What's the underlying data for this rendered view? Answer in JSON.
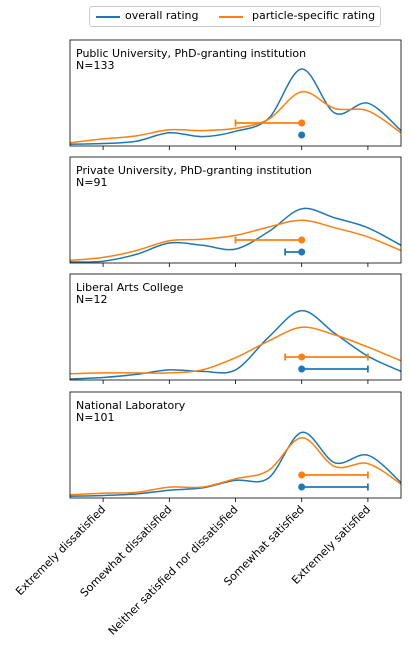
{
  "legend": {
    "placement": "top-center",
    "items": [
      {
        "label": "overall rating",
        "color": "#1f77b4"
      },
      {
        "label": "particle-specific rating",
        "color": "#ff7f0e"
      }
    ]
  },
  "x_tick_labels": [
    "Extremely dissatisfied",
    "Somewhat dissatisfied",
    "Neither satisfied nor dissatisfied",
    "Somewhat satisfied",
    "Extremely satisfied"
  ],
  "chart_data": [
    {
      "type": "line",
      "title": "Public University, PhD-granting institution",
      "n_label": "N=133",
      "x_range": [
        0.5,
        5.5
      ],
      "ylim": [
        0,
        1
      ],
      "series": [
        {
          "name": "overall rating",
          "color": "#1f77b4",
          "x": [
            0.5,
            1.0,
            1.5,
            2.0,
            2.5,
            3.0,
            3.5,
            4.0,
            4.5,
            5.0,
            5.5
          ],
          "y": [
            0.01,
            0.02,
            0.05,
            0.16,
            0.11,
            0.18,
            0.35,
            1.0,
            0.42,
            0.55,
            0.19
          ],
          "point_estimate": 4.0,
          "interval": null
        },
        {
          "name": "particle-specific rating",
          "color": "#ff7f0e",
          "x": [
            0.5,
            1.0,
            1.5,
            2.0,
            2.5,
            3.0,
            3.5,
            4.0,
            4.5,
            5.0,
            5.5
          ],
          "y": [
            0.03,
            0.08,
            0.12,
            0.2,
            0.19,
            0.22,
            0.34,
            0.7,
            0.48,
            0.45,
            0.16
          ],
          "point_estimate": 4.0,
          "interval": [
            3.0,
            4.0
          ]
        }
      ]
    },
    {
      "type": "line",
      "title": "Private University, PhD-granting institution",
      "n_label": "N=91",
      "x_range": [
        0.5,
        5.5
      ],
      "ylim": [
        0,
        1
      ],
      "series": [
        {
          "name": "overall rating",
          "color": "#1f77b4",
          "x": [
            0.5,
            1.0,
            1.5,
            2.0,
            2.5,
            3.0,
            3.5,
            4.0,
            4.5,
            5.0,
            5.5
          ],
          "y": [
            0.0,
            0.01,
            0.1,
            0.25,
            0.22,
            0.17,
            0.4,
            0.7,
            0.58,
            0.45,
            0.22
          ],
          "point_estimate": 4.0,
          "interval": [
            3.75,
            4.0
          ]
        },
        {
          "name": "particle-specific rating",
          "color": "#ff7f0e",
          "x": [
            0.5,
            1.0,
            1.5,
            2.0,
            2.5,
            3.0,
            3.5,
            4.0,
            4.5,
            5.0,
            5.5
          ],
          "y": [
            0.02,
            0.06,
            0.15,
            0.28,
            0.3,
            0.35,
            0.46,
            0.55,
            0.45,
            0.33,
            0.15
          ],
          "point_estimate": 4.0,
          "interval": [
            3.0,
            4.0
          ]
        }
      ]
    },
    {
      "type": "line",
      "title": "Liberal Arts College",
      "n_label": "N=12",
      "x_range": [
        0.5,
        5.5
      ],
      "ylim": [
        0,
        1
      ],
      "series": [
        {
          "name": "overall rating",
          "color": "#1f77b4",
          "x": [
            0.5,
            1.0,
            1.5,
            2.0,
            2.5,
            3.0,
            3.5,
            4.0,
            4.5,
            5.0,
            5.5
          ],
          "y": [
            0.0,
            0.02,
            0.06,
            0.12,
            0.1,
            0.12,
            0.55,
            0.9,
            0.6,
            0.3,
            0.1
          ],
          "point_estimate": 4.0,
          "interval": [
            4.0,
            5.0
          ]
        },
        {
          "name": "particle-specific rating",
          "color": "#ff7f0e",
          "x": [
            0.5,
            1.0,
            1.5,
            2.0,
            2.5,
            3.0,
            3.5,
            4.0,
            4.5,
            5.0,
            5.5
          ],
          "y": [
            0.07,
            0.08,
            0.08,
            0.08,
            0.12,
            0.28,
            0.5,
            0.68,
            0.58,
            0.42,
            0.24
          ],
          "point_estimate": 4.0,
          "interval": [
            3.75,
            5.0
          ]
        }
      ]
    },
    {
      "type": "line",
      "title": "National Laboratory",
      "n_label": "N=101",
      "x_range": [
        0.5,
        5.5
      ],
      "ylim": [
        0,
        1
      ],
      "series": [
        {
          "name": "overall rating",
          "color": "#1f77b4",
          "x": [
            0.5,
            1.0,
            1.5,
            2.0,
            2.5,
            3.0,
            3.5,
            4.0,
            4.5,
            5.0,
            5.5
          ],
          "y": [
            0.01,
            0.02,
            0.04,
            0.09,
            0.12,
            0.22,
            0.25,
            0.85,
            0.45,
            0.55,
            0.19
          ],
          "point_estimate": 4.0,
          "interval": [
            4.0,
            5.0
          ]
        },
        {
          "name": "particle-specific rating",
          "color": "#ff7f0e",
          "x": [
            0.5,
            1.0,
            1.5,
            2.0,
            2.5,
            3.0,
            3.5,
            4.0,
            4.5,
            5.0,
            5.5
          ],
          "y": [
            0.03,
            0.05,
            0.06,
            0.13,
            0.13,
            0.24,
            0.35,
            0.78,
            0.4,
            0.44,
            0.17
          ],
          "point_estimate": 4.0,
          "interval": [
            4.0,
            5.0
          ]
        }
      ]
    }
  ]
}
